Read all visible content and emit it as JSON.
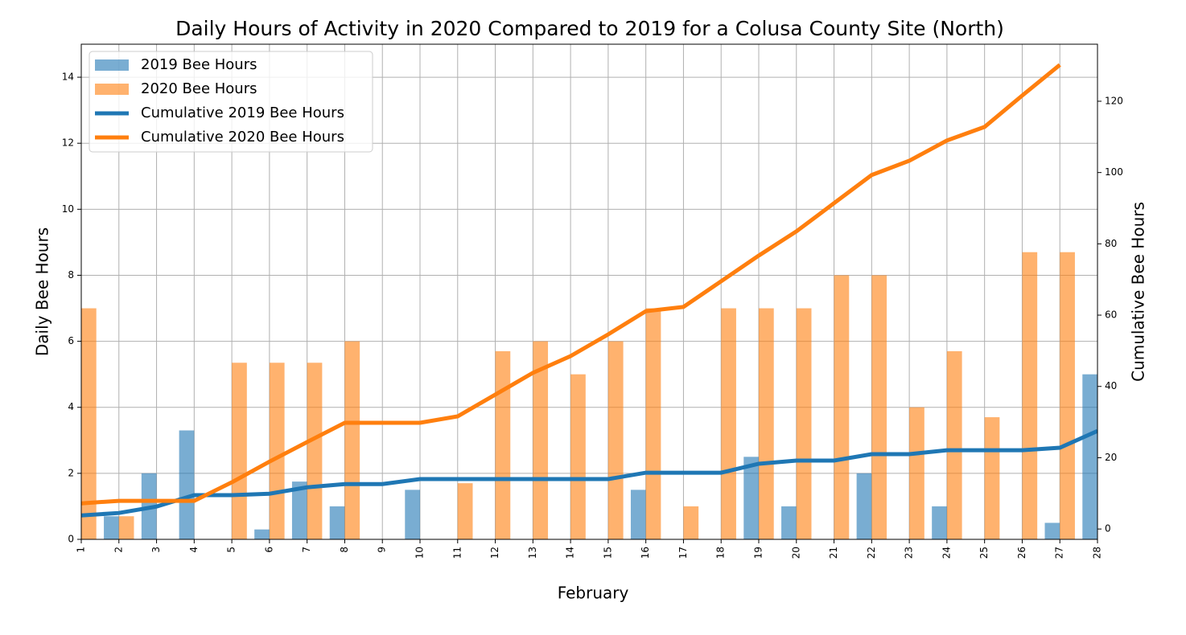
{
  "chart_data": {
    "type": "bar",
    "title": "Daily Hours of Activity in 2020 Compared to 2019 for a Colusa County Site (North)",
    "xlabel": "February",
    "ylabel": "Daily Bee Hours",
    "y2label": "Cumulative Bee Hours",
    "categories": [
      "1",
      "2",
      "3",
      "4",
      "5",
      "6",
      "7",
      "8",
      "9",
      "10",
      "11",
      "12",
      "13",
      "14",
      "15",
      "16",
      "17",
      "18",
      "19",
      "20",
      "21",
      "22",
      "23",
      "24",
      "25",
      "26",
      "27",
      "28"
    ],
    "ylim": [
      0,
      15
    ],
    "yticks": [
      0,
      2,
      4,
      6,
      8,
      10,
      12,
      14
    ],
    "y2lim": [
      -2.9,
      136
    ],
    "y2ticks": [
      0,
      20,
      40,
      60,
      80,
      100,
      120
    ],
    "grid": true,
    "legend": "upper left",
    "series": [
      {
        "name": "2019 Bee Hours",
        "type": "bar",
        "color": "#1f77b4",
        "opacity": 0.6,
        "values": [
          null,
          0.7,
          2,
          3.3,
          0,
          0.3,
          1.75,
          1,
          0,
          1.5,
          0,
          0,
          0,
          0,
          0,
          1.5,
          0,
          0,
          2.5,
          1,
          0,
          2,
          0,
          1,
          0,
          0,
          0.5,
          5
        ]
      },
      {
        "name": "2020 Bee Hours",
        "type": "bar",
        "color": "#ff7f0e",
        "opacity": 0.6,
        "values": [
          7,
          0.7,
          0,
          0,
          5.35,
          5.35,
          5.35,
          6,
          0,
          0,
          1.7,
          5.7,
          6,
          5,
          6,
          7,
          1,
          7,
          7,
          7,
          8,
          8,
          4,
          5.7,
          3.7,
          8.7,
          8.7,
          null
        ]
      },
      {
        "name": "Cumulative 2019 Bee Hours",
        "type": "line",
        "axis": "y2",
        "color": "#1f77b4",
        "values": [
          3.8,
          4.5,
          6.3,
          9.5,
          9.5,
          9.9,
          11.7,
          12.6,
          12.6,
          14,
          14,
          14,
          14,
          14,
          14,
          15.8,
          15.8,
          15.8,
          18.3,
          19.2,
          19.2,
          21,
          21,
          22.1,
          22.1,
          22.1,
          22.8,
          27.5
        ]
      },
      {
        "name": "Cumulative 2020 Bee Hours",
        "type": "line",
        "axis": "y2",
        "color": "#ff7f0e",
        "values": [
          7.2,
          7.9,
          7.9,
          7.9,
          13.1,
          18.9,
          24.4,
          29.8,
          29.8,
          29.8,
          31.6,
          37.7,
          43.8,
          48.5,
          54.6,
          61.1,
          62.3,
          69.5,
          76.7,
          83.5,
          91.4,
          99.3,
          103.3,
          109,
          112.8,
          121.6,
          130.2,
          null
        ]
      }
    ]
  }
}
